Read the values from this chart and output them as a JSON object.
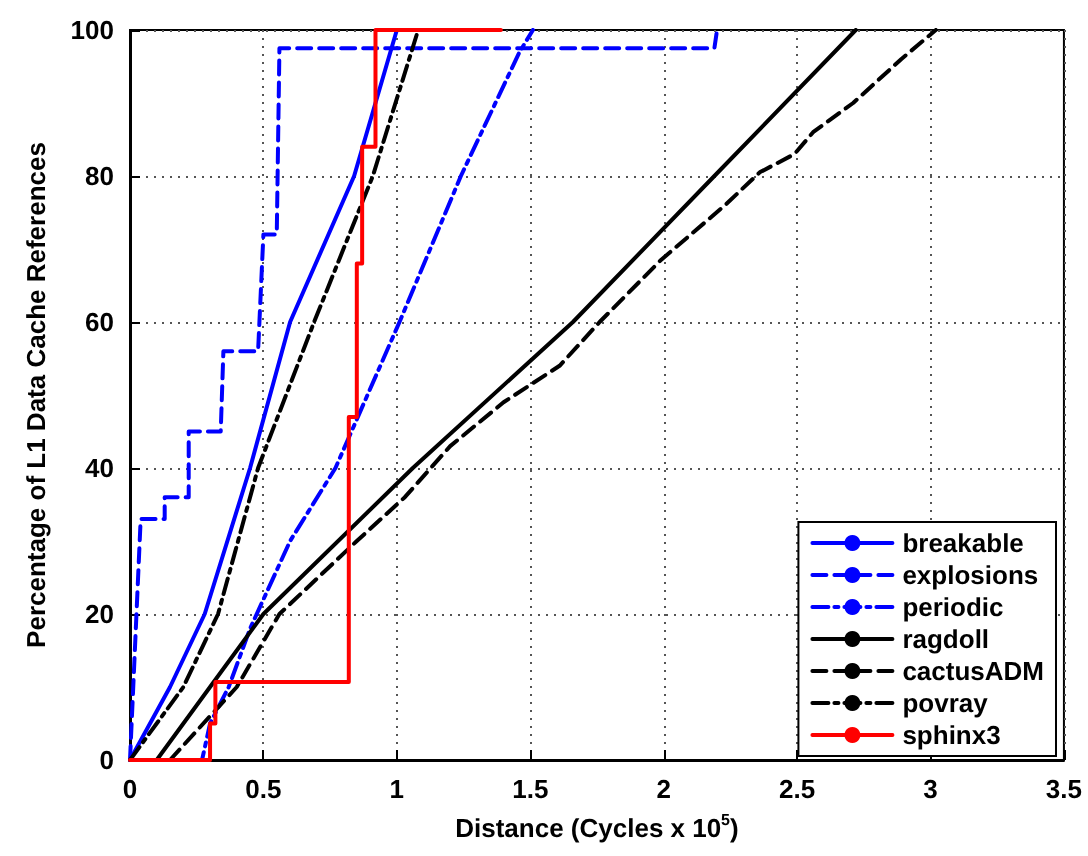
{
  "chart_data": {
    "type": "line",
    "xlabel": "Distance (Cycles x 10$^{5}$)",
    "ylabel": "Percentage of L1 Data Cache References",
    "xlim": [
      0,
      3.5
    ],
    "xticks": [
      0,
      0.5,
      1,
      1.5,
      2,
      2.5,
      3,
      3.5
    ],
    "ylim": [
      0,
      100
    ],
    "yticks": [
      0,
      20,
      40,
      60,
      80,
      100
    ],
    "grid": true,
    "legend": "bottom right",
    "marker": "none",
    "series": [
      {
        "name": "breakable",
        "color": "#0000ff",
        "line_style": "solid",
        "x": [
          0,
          0.15,
          0.28,
          0.45,
          0.6,
          0.84,
          1.0
        ],
        "values": [
          0,
          10,
          20,
          40,
          60,
          80,
          100
        ]
      },
      {
        "name": "explosions",
        "color": "#0000ff",
        "line_style": "dashed",
        "x": [
          0,
          0.04,
          0.13,
          0.13,
          0.22,
          0.22,
          0.34,
          0.35,
          0.48,
          0.5,
          0.55,
          0.56,
          2.19,
          2.2
        ],
        "values": [
          0,
          33,
          33,
          36,
          36,
          45,
          45,
          56,
          56,
          72,
          72,
          97.5,
          97.5,
          100
        ]
      },
      {
        "name": "periodic",
        "color": "#0000ff",
        "line_style": "dashdot",
        "x": [
          0,
          0.27,
          0.3,
          0.37,
          0.45,
          0.6,
          0.77,
          1.01,
          1.24,
          1.46,
          1.51
        ],
        "values": [
          0,
          0,
          5,
          10,
          18,
          30,
          40,
          60,
          80,
          97,
          100
        ]
      },
      {
        "name": "ragdoll",
        "color": "#000000",
        "line_style": "solid",
        "x": [
          0.1,
          0.3,
          0.5,
          1.06,
          1.66,
          2.19,
          2.72
        ],
        "values": [
          0,
          10,
          20,
          40,
          60,
          80,
          100
        ]
      },
      {
        "name": "cactusADM",
        "color": "#000000",
        "line_style": "dashed",
        "x": [
          0.15,
          0.4,
          0.56,
          0.85,
          1.03,
          1.2,
          1.4,
          1.61,
          1.76,
          1.99,
          2.23,
          2.36,
          2.49,
          2.56,
          2.71,
          2.89,
          3.02
        ],
        "values": [
          0,
          10,
          20,
          30,
          36,
          43,
          49,
          54,
          60,
          68.5,
          76,
          80.5,
          83,
          86,
          90,
          96,
          100
        ]
      },
      {
        "name": "povray",
        "color": "#000000",
        "line_style": "dashdot",
        "x": [
          0,
          0.2,
          0.33,
          0.48,
          0.69,
          0.91,
          1.08
        ],
        "values": [
          0,
          10,
          20,
          40,
          60,
          80,
          100
        ]
      },
      {
        "name": "sphinx3",
        "color": "#ff0000",
        "line_style": "solid",
        "x": [
          0,
          0.3,
          0.3,
          0.32,
          0.32,
          0.82,
          0.82,
          0.85,
          0.85,
          0.87,
          0.87,
          0.92,
          0.92,
          1.39
        ],
        "values": [
          0,
          0,
          5,
          5,
          10.7,
          10.7,
          47,
          47,
          68,
          68,
          84,
          84,
          100,
          100
        ]
      }
    ]
  }
}
